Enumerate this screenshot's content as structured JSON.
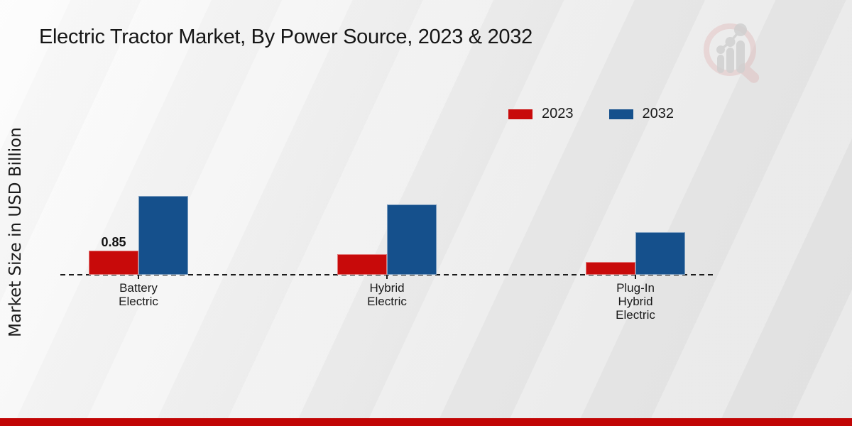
{
  "page_title": "Electric Tractor Market, By Power Source, 2023 & 2032",
  "chart_data": {
    "type": "bar",
    "title": "Electric Tractor Market, By Power Source, 2023 & 2032",
    "xlabel": "",
    "ylabel": "Market Size in USD Billion",
    "categories": [
      "Battery Electric",
      "Hybrid Electric",
      "Plug-In Hybrid Electric"
    ],
    "categories_lines": [
      [
        "Battery",
        "Electric"
      ],
      [
        "Hybrid",
        "Electric"
      ],
      [
        "Plug-In",
        "Hybrid",
        "Electric"
      ]
    ],
    "series": [
      {
        "name": "2023",
        "color": "#c80a0a",
        "values": [
          0.85,
          0.72,
          0.45
        ]
      },
      {
        "name": "2032",
        "color": "#15508c",
        "values": [
          2.78,
          2.48,
          1.5
        ]
      }
    ],
    "data_labels": [
      {
        "series_index": 0,
        "category_index": 0,
        "text": "0.85"
      }
    ],
    "ylim": [
      0,
      3
    ],
    "grid": "none",
    "axis_line_style": "dashed-baseline-only",
    "legend_position": "top-right"
  },
  "branding": {
    "logo_name": "magnifier-growth-chart-watermark",
    "footer_stripe_color": "#c10505"
  }
}
